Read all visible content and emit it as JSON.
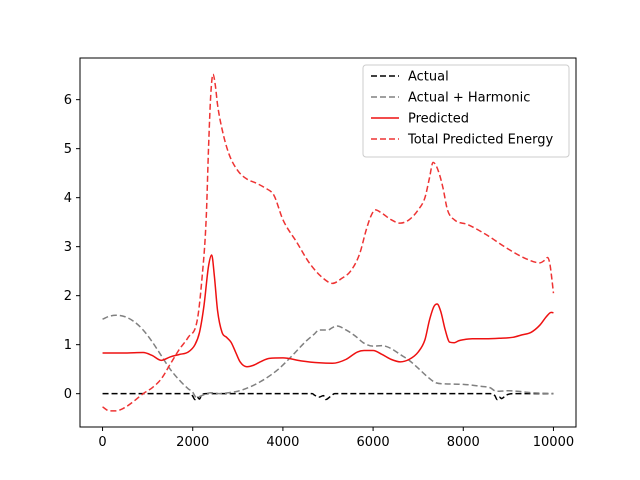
{
  "chart_data": {
    "type": "line",
    "title": "",
    "xlabel": "",
    "ylabel": "",
    "xlim": [
      -500,
      10500
    ],
    "ylim": [
      -0.68,
      6.85
    ],
    "xticks": [
      0,
      2000,
      4000,
      6000,
      8000,
      10000
    ],
    "xtick_labels": [
      "0",
      "2000",
      "4000",
      "6000",
      "8000",
      "10000"
    ],
    "yticks": [
      0,
      1,
      2,
      3,
      4,
      5,
      6
    ],
    "ytick_labels": [
      "0",
      "1",
      "2",
      "3",
      "4",
      "5",
      "6"
    ],
    "grid": false,
    "legend_position": "top-right",
    "series": [
      {
        "name": "Actual",
        "color": "#000000",
        "dash": "dashed",
        "x": [
          0,
          1950,
          2000,
          2050,
          2100,
          2150,
          2200,
          2300,
          4650,
          4700,
          4800,
          4900,
          4950,
          5050,
          5150,
          8600,
          8700,
          8750,
          8800,
          8850,
          8950,
          9100,
          10000
        ],
        "y": [
          0,
          0,
          -0.05,
          -0.12,
          -0.07,
          -0.11,
          -0.02,
          0,
          0,
          -0.03,
          -0.07,
          -0.04,
          -0.12,
          -0.06,
          0,
          0,
          -0.04,
          -0.12,
          -0.07,
          -0.1,
          -0.03,
          0,
          0
        ]
      },
      {
        "name": "Actual + Harmonic",
        "color": "#808080",
        "dash": "dashed",
        "x": [
          0,
          150,
          300,
          500,
          700,
          900,
          1100,
          1300,
          1500,
          1700,
          1900,
          2000,
          2050,
          2100,
          2150,
          2250,
          2400,
          2600,
          2800,
          3000,
          3300,
          3600,
          3900,
          4200,
          4500,
          4700,
          4800,
          4900,
          5000,
          5100,
          5200,
          5400,
          5600,
          5800,
          6000,
          6200,
          6400,
          6600,
          6800,
          7000,
          7200,
          7400,
          7600,
          8000,
          8400,
          8600,
          8700,
          8800,
          9000,
          9200,
          9500,
          10000
        ],
        "y": [
          1.52,
          1.58,
          1.6,
          1.57,
          1.47,
          1.3,
          1.06,
          0.78,
          0.5,
          0.28,
          0.1,
          0.03,
          -0.05,
          -0.08,
          -0.06,
          -0.02,
          0.02,
          0.0,
          0.02,
          0.05,
          0.15,
          0.3,
          0.5,
          0.77,
          1.06,
          1.22,
          1.3,
          1.3,
          1.3,
          1.35,
          1.38,
          1.3,
          1.18,
          1.03,
          0.97,
          0.98,
          0.92,
          0.8,
          0.68,
          0.52,
          0.35,
          0.22,
          0.2,
          0.19,
          0.15,
          0.12,
          0.06,
          0.05,
          0.06,
          0.05,
          0.02,
          0.0
        ]
      },
      {
        "name": "Predicted",
        "color": "#ee1111",
        "dash": "solid",
        "x": [
          0,
          500,
          900,
          1100,
          1300,
          1500,
          1700,
          1900,
          2050,
          2150,
          2250,
          2350,
          2420,
          2480,
          2550,
          2650,
          2750,
          2850,
          2950,
          3050,
          3200,
          3350,
          3500,
          3700,
          4000,
          4400,
          4800,
          5100,
          5400,
          5650,
          5800,
          6000,
          6200,
          6400,
          6600,
          6800,
          7000,
          7150,
          7250,
          7350,
          7420,
          7500,
          7600,
          7700,
          7800,
          7900,
          8000,
          8200,
          8500,
          8800,
          9100,
          9300,
          9500,
          9700,
          9850,
          9950,
          10000
        ],
        "y": [
          0.83,
          0.83,
          0.84,
          0.78,
          0.68,
          0.75,
          0.8,
          0.85,
          1.0,
          1.25,
          1.8,
          2.6,
          2.83,
          2.4,
          1.7,
          1.25,
          1.15,
          1.05,
          0.85,
          0.65,
          0.55,
          0.58,
          0.65,
          0.72,
          0.73,
          0.67,
          0.63,
          0.62,
          0.7,
          0.85,
          0.88,
          0.88,
          0.8,
          0.7,
          0.65,
          0.7,
          0.85,
          1.1,
          1.5,
          1.78,
          1.83,
          1.68,
          1.3,
          1.05,
          1.04,
          1.08,
          1.1,
          1.12,
          1.12,
          1.13,
          1.15,
          1.2,
          1.25,
          1.4,
          1.58,
          1.66,
          1.65
        ]
      },
      {
        "name": "Total Predicted Energy",
        "color": "#ee3333",
        "dash": "dashed",
        "x": [
          0,
          150,
          300,
          500,
          700,
          900,
          1100,
          1300,
          1500,
          1700,
          1900,
          2100,
          2200,
          2300,
          2350,
          2400,
          2450,
          2500,
          2550,
          2650,
          2800,
          3000,
          3200,
          3400,
          3600,
          3800,
          4000,
          4300,
          4600,
          4900,
          5100,
          5300,
          5500,
          5700,
          5850,
          5950,
          6050,
          6200,
          6400,
          6600,
          6800,
          7000,
          7150,
          7250,
          7330,
          7400,
          7480,
          7550,
          7650,
          7800,
          8100,
          8500,
          9000,
          9400,
          9700,
          9800,
          9870,
          9920,
          9970,
          10000
        ],
        "y": [
          -0.27,
          -0.35,
          -0.35,
          -0.28,
          -0.15,
          0.0,
          0.12,
          0.3,
          0.6,
          0.9,
          1.15,
          1.5,
          2.3,
          3.6,
          5.0,
          6.1,
          6.52,
          6.3,
          5.9,
          5.4,
          4.9,
          4.55,
          4.38,
          4.3,
          4.2,
          4.05,
          3.55,
          3.1,
          2.65,
          2.35,
          2.25,
          2.35,
          2.5,
          2.85,
          3.35,
          3.62,
          3.75,
          3.68,
          3.55,
          3.48,
          3.55,
          3.75,
          4.0,
          4.4,
          4.72,
          4.65,
          4.45,
          4.2,
          3.75,
          3.55,
          3.45,
          3.25,
          2.95,
          2.75,
          2.67,
          2.72,
          2.78,
          2.65,
          2.3,
          2.05
        ]
      }
    ]
  }
}
